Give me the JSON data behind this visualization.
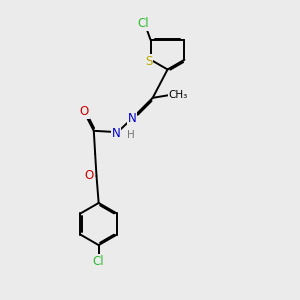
{
  "background_color": "#ebebeb",
  "atom_colors": {
    "C": "#000000",
    "N": "#0000cc",
    "O": "#cc0000",
    "S": "#bbaa00",
    "Cl": "#33bb33",
    "H": "#777777"
  },
  "bond_color": "#000000",
  "bond_width": 1.4,
  "font_size_atom": 8.5,
  "font_size_small": 7.5
}
